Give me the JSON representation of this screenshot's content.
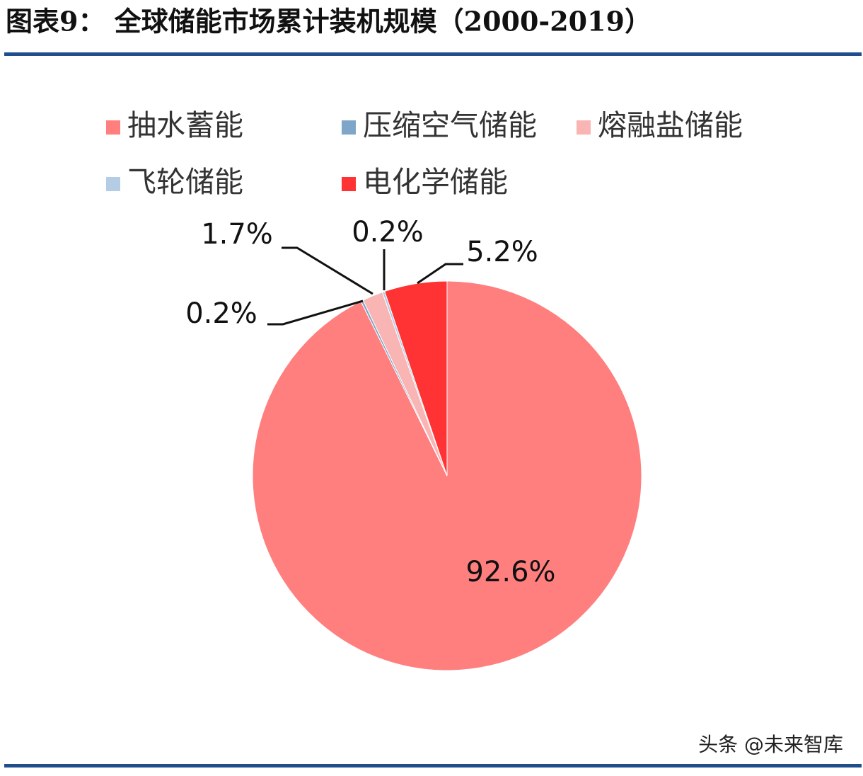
{
  "chart_data": {
    "type": "pie",
    "title": "图表9：  全球储能市场累计装机规模（2000-2019）",
    "categories": [
      "抽水蓄能",
      "压缩空气储能",
      "熔融盐储能",
      "飞轮储能",
      "电化学储能"
    ],
    "values": [
      92.6,
      0.2,
      1.7,
      0.2,
      5.2
    ],
    "value_labels": [
      "92.6%",
      "0.2%",
      "1.7%",
      "0.2%",
      "5.2%"
    ],
    "colors": [
      "#ff7f7f",
      "#7fa6c9",
      "#f9b4b4",
      "#b4cce4",
      "#ff3333"
    ],
    "watermark": "头条 @未来智库"
  }
}
